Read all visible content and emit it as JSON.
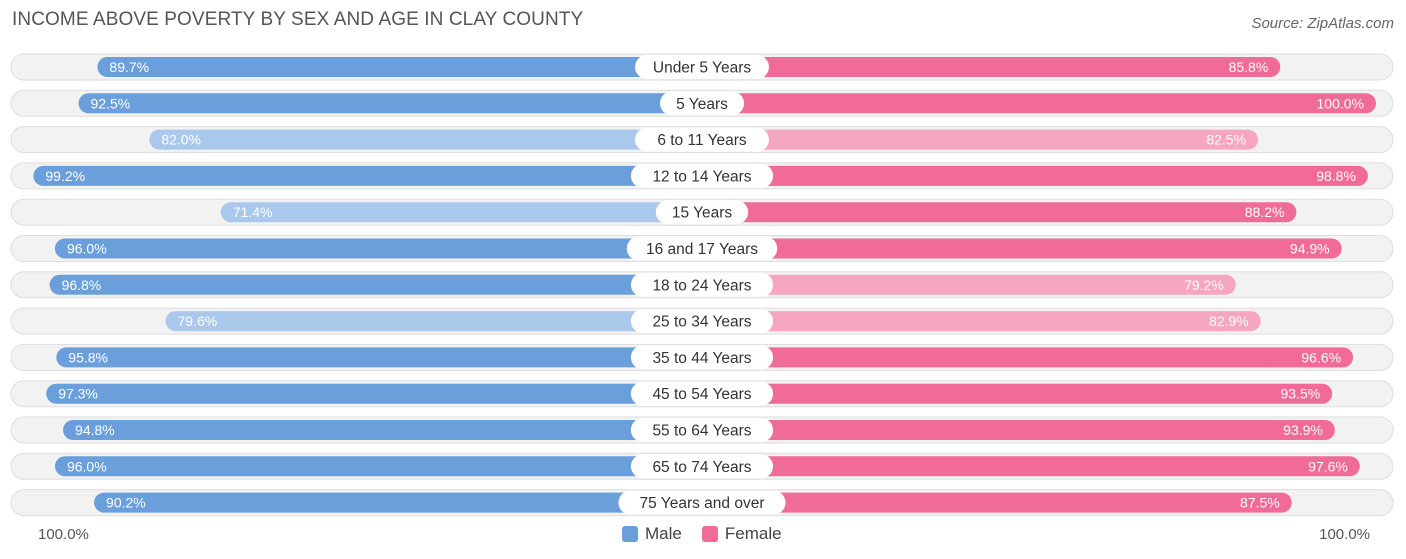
{
  "title": "INCOME ABOVE POVERTY BY SEX AND AGE IN CLAY COUNTY",
  "source": "Source: ZipAtlas.com",
  "axis": {
    "left": "100.0%",
    "right": "100.0%"
  },
  "legend": {
    "male": "Male",
    "female": "Female"
  },
  "colors": {
    "male_strong": "#6a9fdb",
    "male_light": "#a9c8ec",
    "female_strong": "#f06b97",
    "female_light": "#f7a6c0",
    "row_bg": "#f2f2f2",
    "row_border": "#dedede"
  },
  "chart_data": {
    "type": "bar",
    "orientation": "horizontal-diverging",
    "title": "INCOME ABOVE POVERTY BY SEX AND AGE IN CLAY COUNTY",
    "categories": [
      "Under 5 Years",
      "5 Years",
      "6 to 11 Years",
      "12 to 14 Years",
      "15 Years",
      "16 and 17 Years",
      "18 to 24 Years",
      "25 to 34 Years",
      "35 to 44 Years",
      "45 to 54 Years",
      "55 to 64 Years",
      "65 to 74 Years",
      "75 Years and over"
    ],
    "series": [
      {
        "name": "Male",
        "values": [
          89.7,
          92.5,
          82.0,
          99.2,
          71.4,
          96.0,
          96.8,
          79.6,
          95.8,
          97.3,
          94.8,
          96.0,
          90.2
        ],
        "labels": [
          "89.7%",
          "92.5%",
          "82.0%",
          "99.2%",
          "71.4%",
          "96.0%",
          "96.8%",
          "79.6%",
          "95.8%",
          "97.3%",
          "94.8%",
          "96.0%",
          "90.2%"
        ]
      },
      {
        "name": "Female",
        "values": [
          85.8,
          100.0,
          82.5,
          98.8,
          88.2,
          94.9,
          79.2,
          82.9,
          96.6,
          93.5,
          93.9,
          97.6,
          87.5
        ],
        "labels": [
          "85.8%",
          "100.0%",
          "82.5%",
          "98.8%",
          "88.2%",
          "94.9%",
          "79.2%",
          "82.9%",
          "96.6%",
          "93.5%",
          "93.9%",
          "97.6%",
          "87.5%"
        ]
      }
    ],
    "xlim": [
      0,
      100
    ],
    "xlabel_left": "100.0%",
    "xlabel_right": "100.0%",
    "legend_position": "bottom-center"
  }
}
